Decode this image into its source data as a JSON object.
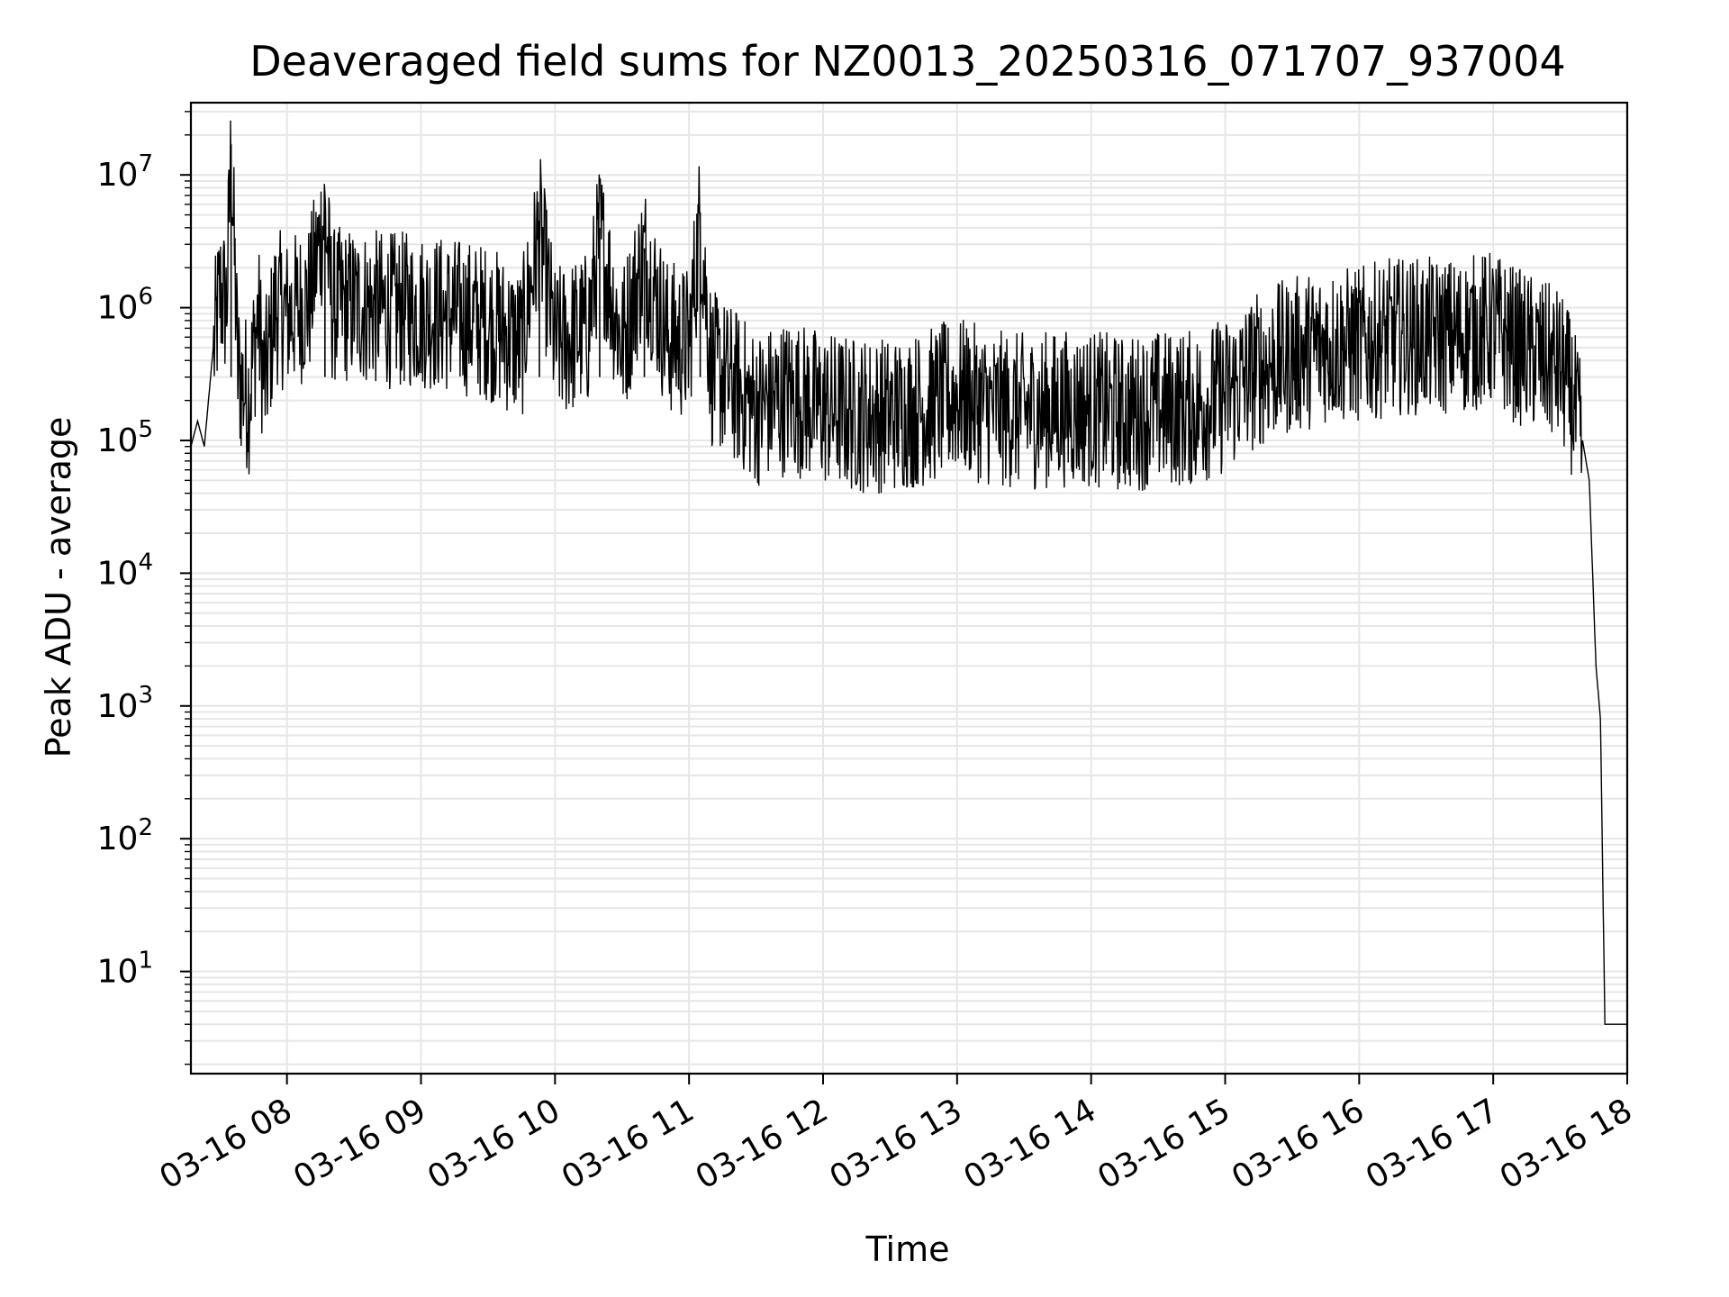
{
  "chart_data": {
    "type": "line",
    "title": "Deaveraged field sums for NZ0013_20250316_071707_937004",
    "xlabel": "Time",
    "ylabel": "Peak ADU - average",
    "yscale": "log",
    "ylim": [
      1.7,
      35000000
    ],
    "xlim": [
      "03-16 07:17",
      "03-16 18:00"
    ],
    "grid": true,
    "x_ticks": [
      "03-16 08",
      "03-16 09",
      "03-16 10",
      "03-16 11",
      "03-16 12",
      "03-16 13",
      "03-16 14",
      "03-16 15",
      "03-16 16",
      "03-16 17",
      "03-16 18"
    ],
    "y_ticks": [
      {
        "base": "10",
        "exp": "1",
        "value": 10
      },
      {
        "base": "10",
        "exp": "2",
        "value": 100
      },
      {
        "base": "10",
        "exp": "3",
        "value": 1000
      },
      {
        "base": "10",
        "exp": "4",
        "value": 10000
      },
      {
        "base": "10",
        "exp": "5",
        "value": 100000
      },
      {
        "base": "10",
        "exp": "6",
        "value": 1000000
      },
      {
        "base": "10",
        "exp": "7",
        "value": 10000000
      }
    ],
    "line_color": "#000000",
    "grid_color": "#e6e6e6",
    "series": [
      {
        "x": [
          "03-16 07:17",
          "03-16 07:20",
          "03-16 07:23",
          "03-16 07:27",
          "03-16 07:30",
          "03-16 07:33",
          "03-16 07:35",
          "03-16 07:38",
          "03-16 07:40",
          "03-16 07:43",
          "03-16 07:47",
          "03-16 07:50",
          "03-16 07:55",
          "03-16 08:00",
          "03-16 08:10",
          "03-16 08:17",
          "03-16 08:20",
          "03-16 08:30",
          "03-16 08:45",
          "03-16 09:00",
          "03-16 09:15",
          "03-16 09:30",
          "03-16 09:45",
          "03-16 09:53",
          "03-16 10:00",
          "03-16 10:15",
          "03-16 10:20",
          "03-16 10:30",
          "03-16 10:40",
          "03-16 10:50",
          "03-16 11:00",
          "03-16 11:05",
          "03-16 11:10",
          "03-16 11:20",
          "03-16 11:30",
          "03-16 11:45",
          "03-16 12:00",
          "03-16 12:15",
          "03-16 12:30",
          "03-16 12:45",
          "03-16 13:00",
          "03-16 13:15",
          "03-16 13:30",
          "03-16 13:45",
          "03-16 14:00",
          "03-16 14:15",
          "03-16 14:30",
          "03-16 14:45",
          "03-16 15:00",
          "03-16 15:15",
          "03-16 15:30",
          "03-16 15:45",
          "03-16 16:00",
          "03-16 16:15",
          "03-16 16:30",
          "03-16 16:45",
          "03-16 17:00",
          "03-16 17:10",
          "03-16 17:20",
          "03-16 17:30",
          "03-16 17:35",
          "03-16 17:40",
          "03-16 17:43",
          "03-16 17:46",
          "03-16 17:48",
          "03-16 17:50",
          "03-16 17:51",
          "03-16 18:00"
        ],
        "y": [
          90000,
          140000,
          90000,
          500000,
          1500000,
          1200000,
          17000000,
          400000,
          300000,
          250000,
          1000000,
          300000,
          1200000,
          1000000,
          1300000,
          6000000,
          1200000,
          1200000,
          1100000,
          1100000,
          1000000,
          900000,
          600000,
          4500000,
          600000,
          800000,
          4000000,
          600000,
          2800000,
          700000,
          600000,
          5200000,
          400000,
          300000,
          200000,
          250000,
          200000,
          180000,
          180000,
          200000,
          250000,
          200000,
          190000,
          200000,
          200000,
          180000,
          200000,
          200000,
          250000,
          400000,
          500000,
          600000,
          600000,
          700000,
          700000,
          700000,
          800000,
          600000,
          500000,
          400000,
          250000,
          100000,
          50000,
          2000,
          800,
          4,
          4,
          4
        ]
      }
    ]
  }
}
